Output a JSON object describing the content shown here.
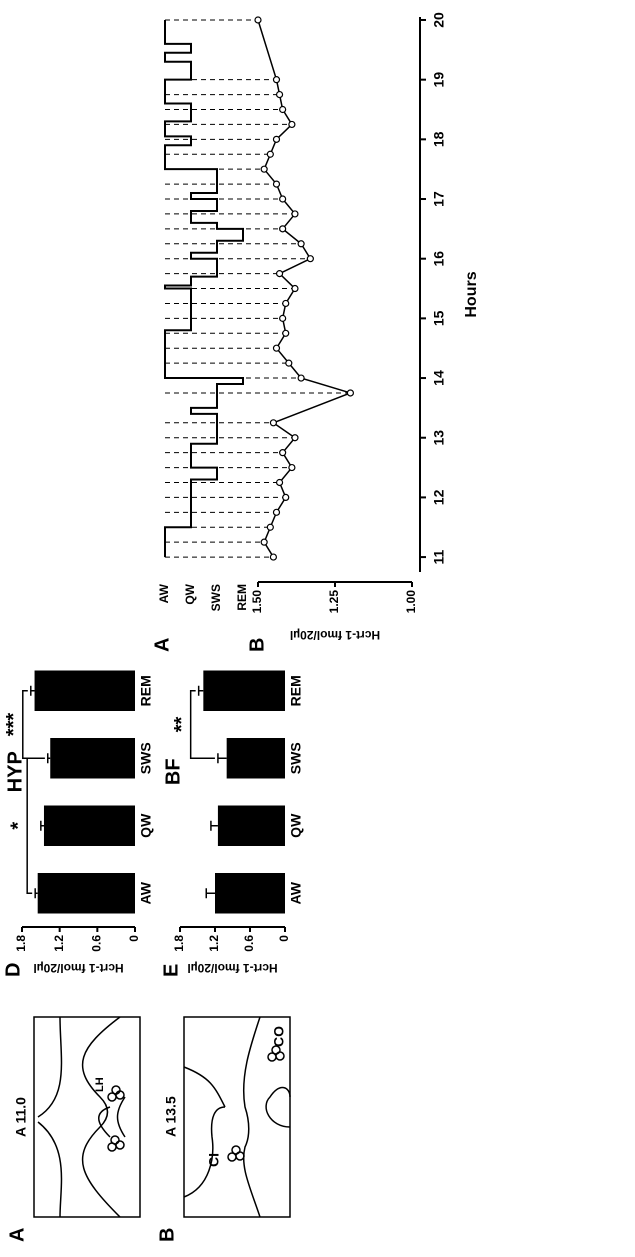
{
  "schematics": [
    {
      "panel": "A",
      "section": "A 11.0",
      "regions": [
        "LH"
      ]
    },
    {
      "panel": "B",
      "section": "A 13.5",
      "regions": [
        "CI",
        "CO"
      ]
    }
  ],
  "chart_data": [
    {
      "type": "bar",
      "panel": "D",
      "title": "HYP",
      "ylabel": "Hcrt-1 fmol/20µl",
      "categories": [
        "AW",
        "QW",
        "SWS",
        "REM"
      ],
      "values": [
        1.55,
        1.45,
        1.35,
        1.6
      ],
      "errors": [
        0.04,
        0.05,
        0.04,
        0.06
      ],
      "color": "#000000",
      "ylim": [
        0,
        1.8
      ],
      "yticks": [
        0,
        0.6,
        1.2,
        1.8
      ],
      "annotations": [
        "*",
        "***"
      ]
    },
    {
      "type": "bar",
      "panel": "E",
      "title": "BF",
      "ylabel": "Hcrt-1 fmol/20µl",
      "categories": [
        "AW",
        "QW",
        "SWS",
        "REM"
      ],
      "values": [
        1.2,
        1.15,
        1.0,
        1.4
      ],
      "errors": [
        0.15,
        0.12,
        0.15,
        0.08
      ],
      "color": "#000000",
      "ylim": [
        0,
        1.8
      ],
      "yticks": [
        0,
        0.6,
        1.2,
        1.8
      ],
      "annotations": [
        "**"
      ]
    },
    {
      "type": "step",
      "panel": "A",
      "categories": [
        "AW",
        "QW",
        "SWS",
        "REM"
      ],
      "x": [
        11,
        11.5,
        12.3,
        12.5,
        12.9,
        13.4,
        13.5,
        13.9,
        14,
        14.8,
        15.5,
        15.55,
        15.7,
        16.0,
        16.1,
        16.3,
        16.5,
        16.6,
        16.8,
        17.0,
        17.1,
        17.5,
        17.9,
        18.05,
        18.3,
        18.6,
        19.0,
        19.3,
        19.45,
        19.6,
        20
      ],
      "values": [
        "AW",
        "QW",
        "SWS",
        "QW",
        "SWS",
        "QW",
        "SWS",
        "REM",
        "AW",
        "QW",
        "AW",
        "QW",
        "SWS",
        "QW",
        "SWS",
        "REM",
        "SWS",
        "QW",
        "SWS",
        "QW",
        "SWS",
        "AW",
        "QW",
        "AW",
        "QW",
        "AW",
        "QW",
        "AW",
        "QW",
        "AW",
        "AW"
      ],
      "xlim": [
        10.75,
        20.05
      ]
    },
    {
      "type": "line",
      "panel": "B",
      "xlabel": "Hours",
      "ylabel": "Hcrt-1 fmol/20µl",
      "x": [
        11,
        11.25,
        11.5,
        11.75,
        12,
        12.25,
        12.5,
        12.75,
        13,
        13.25,
        13.75,
        14,
        14.25,
        14.5,
        14.75,
        15,
        15.25,
        15.5,
        15.75,
        16,
        16.25,
        16.5,
        16.75,
        17,
        17.25,
        17.5,
        17.75,
        18,
        18.25,
        18.5,
        18.75,
        19,
        20
      ],
      "values": [
        1.45,
        1.48,
        1.46,
        1.44,
        1.41,
        1.43,
        1.39,
        1.42,
        1.38,
        1.45,
        1.2,
        1.36,
        1.4,
        1.44,
        1.41,
        1.42,
        1.41,
        1.38,
        1.43,
        1.33,
        1.36,
        1.42,
        1.38,
        1.42,
        1.44,
        1.48,
        1.46,
        1.44,
        1.39,
        1.42,
        1.43,
        1.44,
        1.5
      ],
      "color": "#000000",
      "xlim": [
        10.75,
        20.05
      ],
      "ylim": [
        1.0,
        1.5
      ],
      "xticks": [
        11,
        12,
        13,
        14,
        15,
        16,
        17,
        18,
        19,
        20
      ],
      "yticks": [
        {
          "value": 1.0,
          "label": "1.00"
        },
        {
          "value": 1.25,
          "label": "1.25"
        },
        {
          "value": 1.5,
          "label": "1.50"
        }
      ]
    }
  ]
}
